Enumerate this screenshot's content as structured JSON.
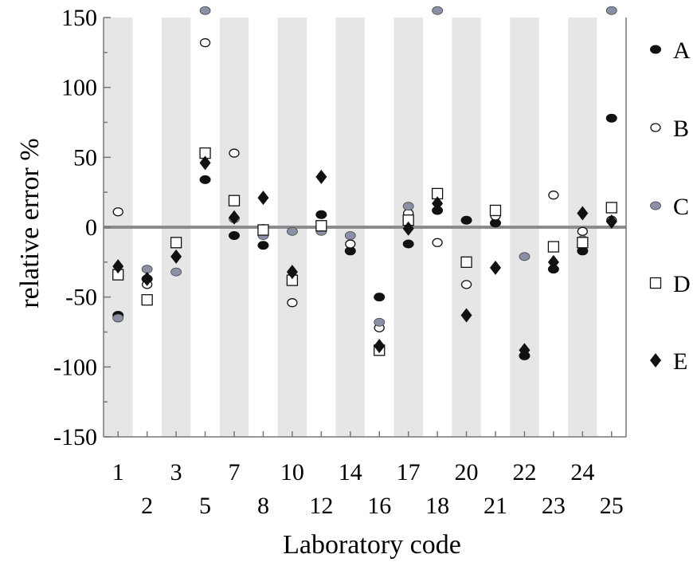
{
  "chart_data": {
    "type": "scatter",
    "xlabel": "Laboratory code",
    "ylabel": "relative error %",
    "ylim": [
      -150,
      150
    ],
    "y_ticks": [
      150,
      100,
      50,
      0,
      -50,
      -100,
      -150
    ],
    "x_tick_labels_top": [
      "1",
      "3",
      "7",
      "10",
      "14",
      "17",
      "20",
      "22",
      "24"
    ],
    "x_tick_labels_bottom": [
      "2",
      "5",
      "8",
      "12",
      "16",
      "18",
      "21",
      "23",
      "25"
    ],
    "categories": [
      "1",
      "2",
      "3",
      "5",
      "7",
      "8",
      "10",
      "12",
      "14",
      "16",
      "17",
      "18",
      "20",
      "21",
      "22",
      "23",
      "24",
      "25"
    ],
    "shaded_bands": true,
    "zero_line": true,
    "legend_position": "right",
    "series": [
      {
        "name": "A",
        "marker": "filled-circle",
        "color": "#111111",
        "values": [
          -63,
          -37,
          null,
          34,
          -6,
          -13,
          -36,
          9,
          -17,
          -50,
          -12,
          12,
          5,
          3,
          -92,
          -30,
          -17,
          78
        ]
      },
      {
        "name": "B",
        "marker": "open-circle",
        "color": "#ffffff",
        "values": [
          11,
          -41,
          null,
          132,
          53,
          -1,
          -54,
          1,
          -12,
          -72,
          10,
          -11,
          -41,
          8,
          null,
          23,
          -3,
          5
        ]
      },
      {
        "name": "C",
        "marker": "gray-circle",
        "color": "#8a90a6",
        "values": [
          -65,
          -30,
          -32,
          155,
          6,
          -6,
          -3,
          -3,
          -6,
          -68,
          15,
          155,
          null,
          null,
          -21,
          null,
          -9,
          155
        ]
      },
      {
        "name": "D",
        "marker": "open-square",
        "color": "#ffffff",
        "values": [
          -34,
          -52,
          -11,
          53,
          19,
          -2,
          -38,
          1,
          null,
          -88,
          5,
          24,
          -25,
          12,
          null,
          -14,
          -11,
          14
        ]
      },
      {
        "name": "E",
        "marker": "filled-diamond",
        "color": "#111111",
        "values": [
          -28,
          -37,
          -21,
          46,
          7,
          21,
          -32,
          36,
          null,
          -85,
          -1,
          17,
          -63,
          -29,
          -88,
          -25,
          10,
          4
        ]
      }
    ]
  }
}
